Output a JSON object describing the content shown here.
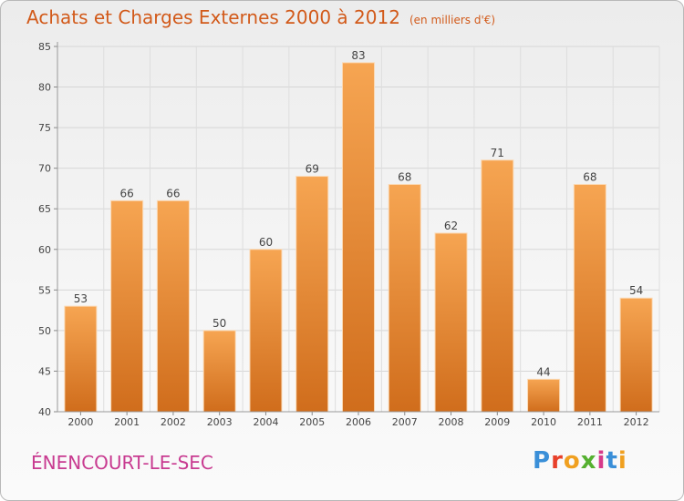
{
  "chart_data": {
    "type": "bar",
    "title": "Achats et Charges Externes 2000 à 2012",
    "subtitle": "(en milliers d'€)",
    "categories": [
      "2000",
      "2001",
      "2002",
      "2003",
      "2004",
      "2005",
      "2006",
      "2007",
      "2008",
      "2009",
      "2010",
      "2011",
      "2012"
    ],
    "values": [
      53,
      66,
      66,
      50,
      60,
      69,
      83,
      68,
      62,
      71,
      44,
      68,
      54
    ],
    "ylim": [
      40,
      85
    ],
    "yticks": [
      40,
      45,
      50,
      55,
      60,
      65,
      70,
      75,
      80,
      85
    ],
    "grid": true,
    "bar_color": "#e8822e",
    "xlabel": "",
    "ylabel": ""
  },
  "footer": {
    "commune": "ÉNENCOURT-LE-SEC",
    "logo_text": "Proxiti"
  },
  "colors": {
    "title": "#d25a1a",
    "commune": "#c83a90",
    "logo": [
      "#3a8fd8",
      "#e8402a",
      "#f0a020",
      "#55b030",
      "#d63a8a",
      "#3a8fd8",
      "#f0a020"
    ]
  }
}
